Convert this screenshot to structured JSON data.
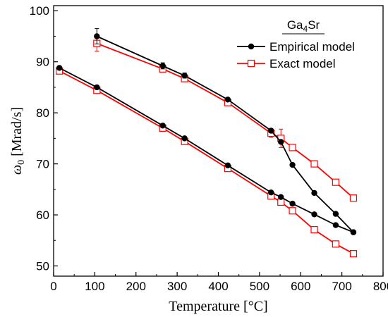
{
  "chart_data": {
    "type": "line",
    "xlabel": "Temperature [°C]",
    "ylabel_symbol": "ω",
    "ylabel_subscript": "0",
    "ylabel_unit": " [Mrad/s]",
    "xlim": [
      0,
      800
    ],
    "ylim": [
      48,
      101
    ],
    "xticks": [
      0,
      100,
      200,
      300,
      400,
      500,
      600,
      700,
      800
    ],
    "yticks": [
      50,
      60,
      70,
      80,
      90,
      100
    ],
    "grid": false,
    "legend": {
      "title_main": "Ga",
      "title_sub": "4",
      "title_tail": "Sr",
      "placement": "top-right"
    },
    "series": [
      {
        "name": "Empirical model",
        "color": "#000000",
        "marker": "filled-circle",
        "branches": [
          {
            "x": [
              105,
              265,
              318,
              423,
              528,
              552,
              580,
              633,
              685,
              728
            ],
            "y": [
              95.0,
              89.2,
              87.3,
              82.6,
              76.5,
              74.3,
              69.8,
              64.3,
              60.2,
              56.6
            ],
            "error": [
              1.5,
              0.6,
              0.5,
              0.3,
              0.4,
              0.3,
              0.3,
              0.3,
              0.3,
              0.3
            ]
          },
          {
            "x": [
              14,
              105,
              265,
              318,
              423,
              528,
              552,
              580,
              633,
              685,
              728
            ],
            "y": [
              88.8,
              85.0,
              77.5,
              75.0,
              69.7,
              64.4,
              63.5,
              62.2,
              60.1,
              58.0,
              56.6
            ],
            "error": [
              0.3,
              0.3,
              0.3,
              0.3,
              0.3,
              0.3,
              0.3,
              0.3,
              0.3,
              0.3,
              0.3
            ]
          }
        ]
      },
      {
        "name": "Exact model",
        "color": "#ff0000",
        "marker": "open-square",
        "branches": [
          {
            "x": [
              105,
              265,
              318,
              423,
              528,
              552,
              580,
              633,
              685,
              728
            ],
            "y": [
              93.6,
              88.6,
              86.7,
              82.0,
              76.0,
              75.0,
              73.2,
              70.0,
              66.4,
              63.3
            ],
            "error": [
              1.5,
              0.6,
              0.5,
              0.4,
              0.8,
              1.8,
              0.4,
              0.3,
              0.3,
              0.3
            ]
          },
          {
            "x": [
              14,
              105,
              265,
              318,
              423,
              528,
              552,
              580,
              633,
              685,
              728
            ],
            "y": [
              88.2,
              84.4,
              77.0,
              74.4,
              69.1,
              63.7,
              62.5,
              60.8,
              57.1,
              54.3,
              52.4
            ],
            "error": [
              0.3,
              0.3,
              0.3,
              0.3,
              0.3,
              0.3,
              0.3,
              0.3,
              0.3,
              0.3,
              0.3
            ]
          }
        ]
      }
    ]
  }
}
